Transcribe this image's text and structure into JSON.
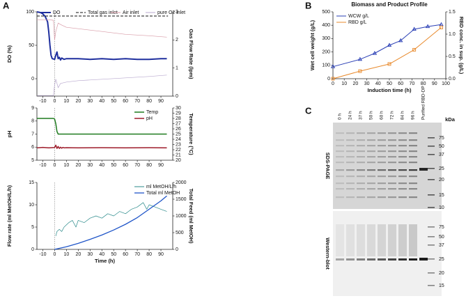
{
  "panels": [
    "A",
    "B",
    "C"
  ],
  "chart_data": [
    {
      "type": "line",
      "ylabel": "DO (%)",
      "y2label": "Gas Flow Rate (lpm)",
      "legend": "top",
      "xlim": [
        -15,
        100
      ],
      "xticks": [
        -10,
        0,
        10,
        20,
        30,
        40,
        50,
        60,
        70,
        80,
        90
      ],
      "ylim": [
        -26,
        100
      ],
      "yticks": [
        0,
        50,
        100
      ],
      "y2lim": [
        0,
        3
      ],
      "y2ticks": [
        0,
        1,
        2,
        3
      ],
      "series": [
        {
          "name": "DO",
          "color": "#1f2f9e",
          "width": 2,
          "x": [
            -15,
            -12,
            -10,
            -8,
            -6,
            -5,
            -4,
            -3,
            -2,
            0,
            1,
            2,
            3,
            4,
            5,
            6,
            8,
            10,
            20,
            30,
            40,
            50,
            60,
            70,
            80,
            90,
            95
          ],
          "values": [
            100,
            99,
            97,
            93,
            85,
            70,
            50,
            35,
            30,
            29,
            35,
            40,
            30,
            32,
            28,
            31,
            29,
            30,
            30,
            29,
            30,
            29,
            30,
            29,
            29,
            30,
            30
          ]
        },
        {
          "name": "Total gas inlet",
          "color": "#111111",
          "width": 1,
          "dashed": true,
          "axis": "y2",
          "x": [
            -15,
            96
          ],
          "values": [
            2.85,
            2.85
          ]
        },
        {
          "name": "Air inlet",
          "color": "#d89aa6",
          "width": 0.7,
          "axis": "y2",
          "x": [
            -15,
            -5,
            -1,
            0,
            1,
            3,
            5,
            10,
            20,
            40,
            60,
            80,
            95
          ],
          "values": [
            2.72,
            2.72,
            2.7,
            2.0,
            2.3,
            2.6,
            2.55,
            2.45,
            2.4,
            2.3,
            2.2,
            2.15,
            2.1
          ]
        },
        {
          "name": "pure O2 inlet",
          "color": "#b9a9cf",
          "width": 0.7,
          "axis": "y2",
          "x": [
            -15,
            -1,
            0,
            1,
            3,
            5,
            10,
            20,
            40,
            60,
            80,
            95
          ],
          "values": [
            0.02,
            0.02,
            0.4,
            0.6,
            0.3,
            0.45,
            0.5,
            0.55,
            0.6,
            0.65,
            0.7,
            0.75
          ]
        }
      ]
    },
    {
      "type": "line",
      "ylabel": "pH",
      "y2label": "Temperature (°C)",
      "legend": "top-right",
      "xlim": [
        -15,
        100
      ],
      "xticks": [
        -10,
        0,
        10,
        20,
        30,
        40,
        50,
        60,
        70,
        80,
        90
      ],
      "ylim": [
        5,
        9
      ],
      "yticks": [
        5,
        6,
        7,
        8,
        9
      ],
      "y2lim": [
        20,
        30
      ],
      "y2ticks": [
        20,
        21,
        22,
        23,
        24,
        25,
        26,
        27,
        28,
        29,
        30
      ],
      "series": [
        {
          "name": "Temp",
          "color": "#1e7a1e",
          "width": 1.5,
          "axis": "y2",
          "x": [
            -15,
            -1,
            0,
            1,
            2,
            3,
            5,
            95
          ],
          "values": [
            28,
            28,
            27.9,
            27,
            25.5,
            25,
            25,
            25
          ]
        },
        {
          "name": "pH",
          "color": "#9e1b2a",
          "width": 1.5,
          "x": [
            -15,
            -10,
            -5,
            0,
            1,
            2,
            3,
            4,
            5,
            6,
            7,
            8,
            10,
            20,
            40,
            60,
            80,
            95
          ],
          "values": [
            5.95,
            5.98,
            5.95,
            5.97,
            6.15,
            5.9,
            6.05,
            5.9,
            6.0,
            5.92,
            5.98,
            5.95,
            5.96,
            5.95,
            5.96,
            5.95,
            5.96,
            5.95
          ]
        }
      ]
    },
    {
      "type": "line",
      "ylabel": "Flow rate (ml MetOH/L/h)",
      "y2label": "Total Feed (ml MetOH)",
      "xlabel": "Time (h)",
      "legend": "top-right",
      "xlim": [
        -15,
        100
      ],
      "xticks": [
        -10,
        0,
        10,
        20,
        30,
        40,
        50,
        60,
        70,
        80,
        90
      ],
      "ylim": [
        0,
        15
      ],
      "yticks": [
        0,
        5,
        10,
        15
      ],
      "y2lim": [
        0,
        2000
      ],
      "y2ticks": [
        0,
        500,
        1000,
        1500,
        2000
      ],
      "series": [
        {
          "name": "ml MetOH/L/h",
          "color": "#2a8a8a",
          "width": 0.7,
          "x": [
            1,
            2,
            4,
            6,
            8,
            10,
            12,
            15,
            18,
            20,
            25,
            30,
            35,
            40,
            45,
            50,
            55,
            60,
            65,
            70,
            75,
            78,
            80,
            85,
            90,
            95
          ],
          "values": [
            3,
            4,
            4.5,
            4,
            5,
            5.5,
            6,
            6.5,
            5,
            6.5,
            6,
            7,
            7.5,
            7,
            8,
            7.5,
            8.5,
            8,
            9,
            9.5,
            10.5,
            9,
            10,
            9.5,
            9,
            8.5
          ]
        },
        {
          "name": "Total ml MetOH",
          "color": "#1f55c8",
          "width": 1.3,
          "axis": "y2",
          "x": [
            0,
            10,
            20,
            30,
            40,
            50,
            60,
            70,
            80,
            90,
            95
          ],
          "values": [
            0,
            80,
            180,
            300,
            430,
            580,
            750,
            950,
            1200,
            1450,
            1600
          ]
        }
      ]
    },
    {
      "type": "line",
      "title": "Biomass and Product Profile",
      "ylabel": "Wet cell weight (g/L)",
      "y2label": "RBD conc. in sup. (g/L)",
      "xlabel": "Induction time (h)",
      "legend": "top-left",
      "xlim": [
        0,
        100
      ],
      "xticks": [
        0,
        10,
        20,
        30,
        40,
        50,
        60,
        70,
        80,
        90,
        100
      ],
      "ylim": [
        0,
        500
      ],
      "yticks": [
        0,
        100,
        200,
        300,
        400,
        500
      ],
      "y2lim": [
        0,
        1.5
      ],
      "y2ticks": [
        {
          "value": 0,
          "label": "0.0"
        },
        0.5,
        {
          "value": 1,
          "label": "1.0"
        },
        1.5
      ],
      "series": [
        {
          "name": "WCW g/L",
          "color": "#2a3fb5",
          "width": 1,
          "marker": "triangle",
          "x": [
            0,
            24,
            37,
            50,
            60,
            72,
            84,
            96
          ],
          "values": [
            90,
            145,
            190,
            250,
            285,
            370,
            390,
            405
          ]
        },
        {
          "name": "RBD g/L",
          "color": "#e8892b",
          "width": 1,
          "marker": "square",
          "axis": "y2",
          "x": [
            0,
            24,
            50,
            72,
            96
          ],
          "values": [
            0,
            0.17,
            0.33,
            0.65,
            1.15
          ]
        }
      ]
    }
  ],
  "gel": {
    "lanes": [
      "0 h",
      "24 h",
      "37 h",
      "50 h",
      "60 h",
      "72 h",
      "84 h",
      "96 h",
      "Purified RBD-DP"
    ],
    "unit": "kDa",
    "sds_label": "SDS-PAGE",
    "wb_label": "Western-blot",
    "sds_markers": [
      "75",
      "50",
      "37",
      "25",
      "20",
      "15",
      "10"
    ],
    "wb_markers": [
      "75",
      "50",
      "37",
      "25",
      "20",
      "15"
    ]
  }
}
